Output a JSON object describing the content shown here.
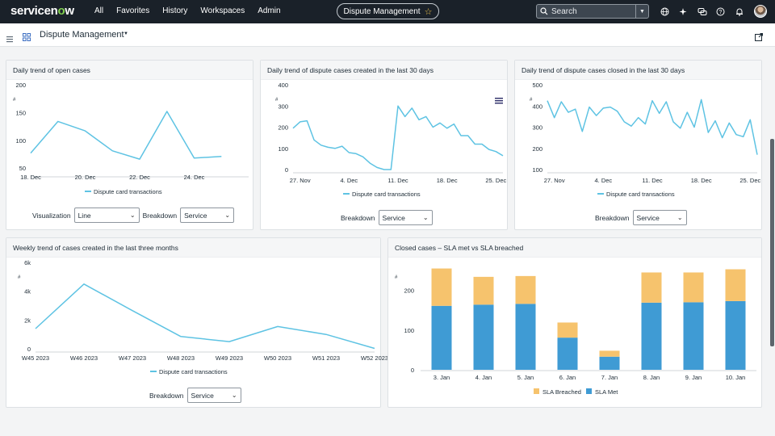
{
  "topnav": {
    "logo": "servicenow",
    "menu": [
      "All",
      "Favorites",
      "History",
      "Workspaces",
      "Admin"
    ],
    "workspace_pill": "Dispute Management",
    "search_placeholder": "Search",
    "icons": [
      "globe-icon",
      "sparkle-icon",
      "chat-icon",
      "help-icon",
      "bell-icon"
    ]
  },
  "subheader": {
    "title": "Dispute Management"
  },
  "colors": {
    "line": "#5ec3e3",
    "sla_breached": "#f6c36d",
    "sla_met": "#3f9bd4"
  },
  "cards": {
    "open_cases": {
      "title": "Daily trend of open cases",
      "visualization_label": "Visualization",
      "visualization_value": "Line",
      "breakdown_label": "Breakdown",
      "breakdown_value": "Service"
    },
    "created_30": {
      "title": "Daily trend of dispute cases created in the last 30 days",
      "breakdown_label": "Breakdown",
      "breakdown_value": "Service"
    },
    "closed_30": {
      "title": "Daily trend of dispute cases closed in the last 30 days",
      "breakdown_label": "Breakdown",
      "breakdown_value": "Service"
    },
    "weekly": {
      "title": "Weekly trend of cases created in the last three months",
      "breakdown_label": "Breakdown",
      "breakdown_value": "Service"
    },
    "sla": {
      "title": "Closed cases – SLA met vs SLA breached"
    }
  },
  "chart_data": [
    {
      "id": "open_cases",
      "type": "line",
      "series_name": "Dispute card transactions",
      "ylabel": "#",
      "ylim": [
        40,
        200
      ],
      "yticks": [
        50,
        100,
        150,
        200
      ],
      "xlim": [
        0,
        8
      ],
      "xticks": [
        {
          "x": 0,
          "label": "18. Dec"
        },
        {
          "x": 2,
          "label": "20. Dec"
        },
        {
          "x": 4,
          "label": "22. Dec"
        },
        {
          "x": 6,
          "label": "24. Dec"
        }
      ],
      "x": [
        0,
        1,
        2,
        3,
        4,
        5,
        6,
        7
      ],
      "values": [
        77,
        134,
        117,
        81,
        66,
        152,
        68,
        71
      ]
    },
    {
      "id": "created_30",
      "type": "line",
      "series_name": "Dispute card transactions",
      "ylabel": "#",
      "ylim": [
        0,
        400
      ],
      "yticks": [
        0,
        100,
        200,
        300,
        400
      ],
      "xlim": [
        0,
        30
      ],
      "xticks": [
        {
          "x": 1,
          "label": "27. Nov"
        },
        {
          "x": 8,
          "label": "4. Dec"
        },
        {
          "x": 15,
          "label": "11. Dec"
        },
        {
          "x": 22,
          "label": "18. Dec"
        },
        {
          "x": 29,
          "label": "25. Dec"
        }
      ],
      "x": [
        0,
        1,
        2,
        3,
        4,
        5,
        6,
        7,
        8,
        9,
        10,
        11,
        12,
        13,
        14,
        15,
        16,
        17,
        18,
        19,
        20,
        21,
        22,
        23,
        24,
        25,
        26,
        27,
        28,
        29,
        30
      ],
      "values": [
        195,
        225,
        230,
        140,
        115,
        105,
        100,
        110,
        80,
        75,
        60,
        30,
        10,
        0,
        0,
        300,
        250,
        290,
        235,
        250,
        200,
        220,
        195,
        215,
        160,
        160,
        120,
        120,
        95,
        85,
        65
      ]
    },
    {
      "id": "closed_30",
      "type": "line",
      "series_name": "Dispute card transactions",
      "ylabel": "#",
      "ylim": [
        100,
        500
      ],
      "yticks": [
        100,
        200,
        300,
        400,
        500
      ],
      "xlim": [
        0,
        30
      ],
      "xticks": [
        {
          "x": 1,
          "label": "27. Nov"
        },
        {
          "x": 8,
          "label": "4. Dec"
        },
        {
          "x": 15,
          "label": "11. Dec"
        },
        {
          "x": 22,
          "label": "18. Dec"
        },
        {
          "x": 29,
          "label": "25. Dec"
        }
      ],
      "x": [
        0,
        1,
        2,
        3,
        4,
        5,
        6,
        7,
        8,
        9,
        10,
        11,
        12,
        13,
        14,
        15,
        16,
        17,
        18,
        19,
        20,
        21,
        22,
        23,
        24,
        25,
        26,
        27,
        28,
        29,
        30
      ],
      "values": [
        425,
        345,
        420,
        370,
        385,
        280,
        395,
        355,
        390,
        395,
        375,
        325,
        305,
        345,
        315,
        425,
        365,
        420,
        325,
        295,
        370,
        300,
        430,
        275,
        330,
        250,
        320,
        265,
        255,
        335,
        170
      ]
    },
    {
      "id": "weekly",
      "type": "line",
      "series_name": "Dispute card transactions",
      "ylabel": "#",
      "ylim": [
        0,
        6000
      ],
      "yticks": [
        {
          "v": 0,
          "label": "0"
        },
        {
          "v": 2000,
          "label": "2k"
        },
        {
          "v": 4000,
          "label": "4k"
        },
        {
          "v": 6000,
          "label": "6k"
        }
      ],
      "xlim": [
        0,
        7
      ],
      "xticks": [
        {
          "x": 0,
          "label": "W45 2023"
        },
        {
          "x": 1,
          "label": "W46 2023"
        },
        {
          "x": 2,
          "label": "W47 2023"
        },
        {
          "x": 3,
          "label": "W48 2023"
        },
        {
          "x": 4,
          "label": "W49 2023"
        },
        {
          "x": 5,
          "label": "W50 2023"
        },
        {
          "x": 6,
          "label": "W51 2023"
        },
        {
          "x": 7,
          "label": "W52 2023"
        }
      ],
      "x": [
        0,
        1,
        2,
        3,
        4,
        5,
        6,
        7
      ],
      "values": [
        1400,
        4500,
        2650,
        850,
        500,
        1550,
        1000,
        30
      ]
    },
    {
      "id": "sla",
      "type": "bar",
      "stacked": true,
      "ylabel": "#",
      "ylim": [
        0,
        250
      ],
      "yticks": [
        0,
        100,
        200
      ],
      "categories": [
        "3. Jan",
        "4. Jan",
        "5. Jan",
        "6. Jan",
        "7. Jan",
        "8. Jan",
        "9. Jan",
        "10. Jan"
      ],
      "series": [
        {
          "name": "SLA Met",
          "values": [
            161,
            164,
            166,
            81,
            33,
            169,
            170,
            173
          ]
        },
        {
          "name": "SLA Breached",
          "values": [
            94,
            70,
            70,
            38,
            15,
            76,
            75,
            80
          ]
        }
      ],
      "legend": [
        "SLA Breached",
        "SLA Met"
      ]
    }
  ]
}
